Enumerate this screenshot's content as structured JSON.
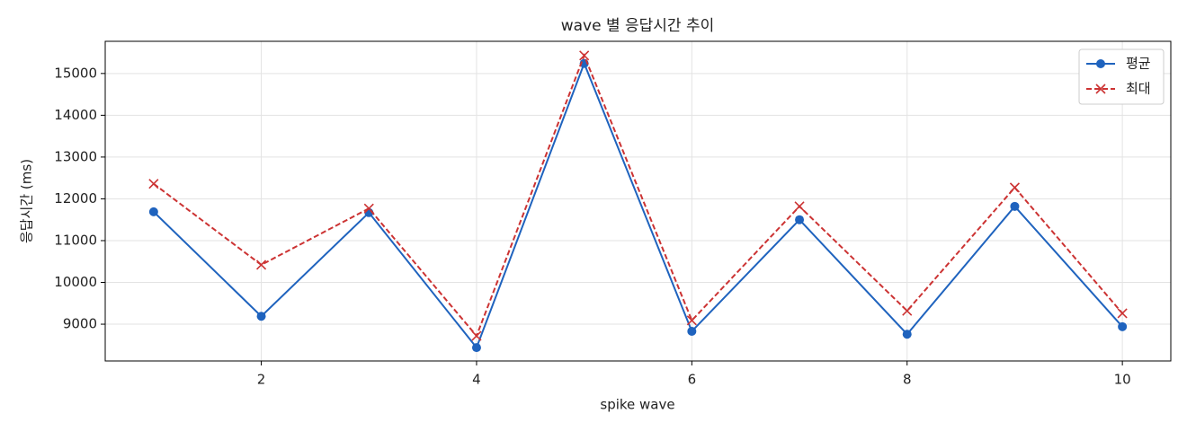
{
  "chart_data": {
    "type": "line",
    "title": "wave 별 응답시간 추이",
    "x_label": "spike wave",
    "y_label": "응답시간 (ms)",
    "x": [
      1,
      2,
      3,
      4,
      5,
      6,
      7,
      8,
      9,
      10
    ],
    "series": [
      {
        "name": "평균",
        "color": "#1f63be",
        "marker": "o",
        "linestyle": "solid",
        "values": [
          11690,
          9190,
          11670,
          8440,
          15240,
          8830,
          11500,
          8760,
          11820,
          8940
        ]
      },
      {
        "name": "최대",
        "color": "#cc3333",
        "marker": "x",
        "linestyle": "dashed",
        "values": [
          12360,
          10420,
          11770,
          8720,
          15430,
          9090,
          11820,
          9320,
          12270,
          9260
        ]
      }
    ],
    "xlim": [
      0.55,
      10.45
    ],
    "xticks": [
      2,
      4,
      6,
      8,
      10
    ],
    "ylim": [
      8120,
      15770
    ],
    "yticks": [
      9000,
      10000,
      11000,
      12000,
      13000,
      14000,
      15000
    ],
    "grid": true,
    "legend": "upper right"
  }
}
